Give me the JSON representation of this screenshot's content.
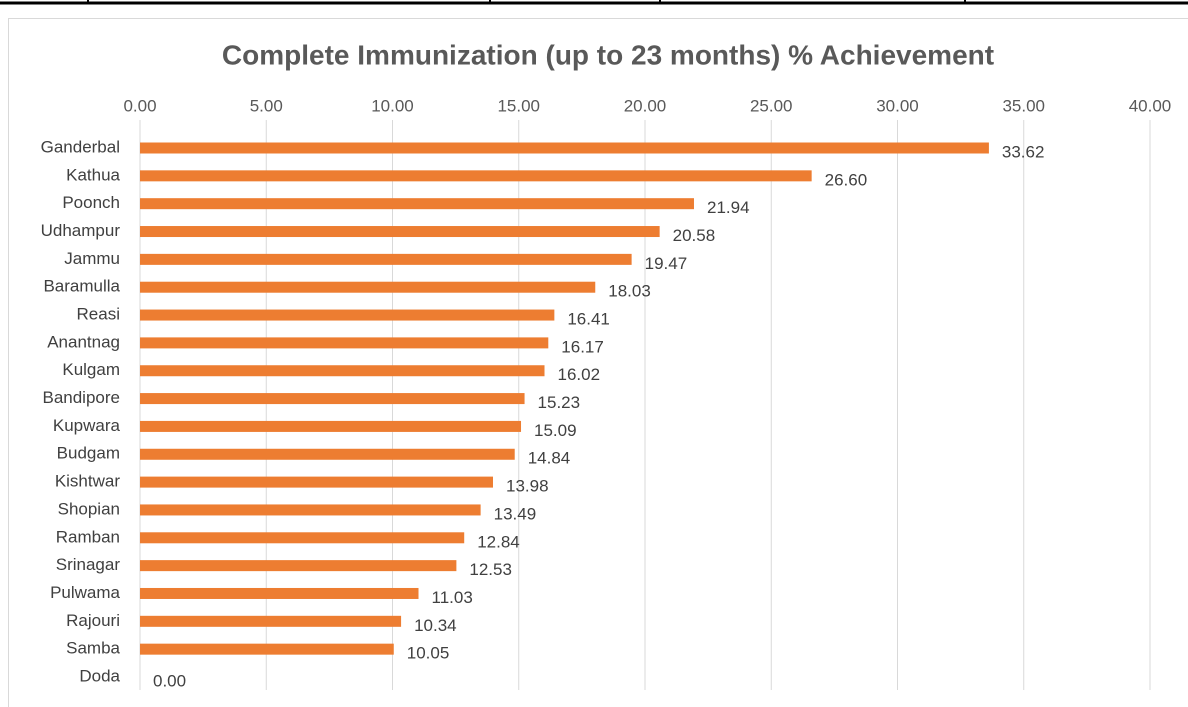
{
  "chart_data": {
    "type": "bar",
    "orientation": "horizontal",
    "title": "Complete Immunization  (up to 23 months) % Achievement",
    "categories": [
      "Ganderbal",
      "Kathua",
      "Poonch",
      "Udhampur",
      "Jammu",
      "Baramulla",
      "Reasi",
      "Anantnag",
      "Kulgam",
      "Bandipore",
      "Kupwara",
      "Budgam",
      "Kishtwar",
      "Shopian",
      "Ramban",
      "Srinagar",
      "Pulwama",
      "Rajouri",
      "Samba",
      "Doda"
    ],
    "values": [
      33.62,
      26.6,
      21.94,
      20.58,
      19.47,
      18.03,
      16.41,
      16.17,
      16.02,
      15.23,
      15.09,
      14.84,
      13.98,
      13.49,
      12.84,
      12.53,
      11.03,
      10.34,
      10.05,
      0
    ],
    "value_labels": [
      "33.62",
      "26.60",
      "21.94",
      "20.58",
      "19.47",
      "18.03",
      "16.41",
      "16.17",
      "16.02",
      "15.23",
      "15.09",
      "14.84",
      "13.98",
      "13.49",
      "12.84",
      "12.53",
      "11.03",
      "10.34",
      "10.05",
      "0.00"
    ],
    "color": "#ed7d31",
    "xlim": [
      0,
      40
    ],
    "xticks": [
      {
        "value": 0,
        "label": "0.00"
      },
      {
        "value": 5,
        "label": "5.00"
      },
      {
        "value": 10,
        "label": "10.00"
      },
      {
        "value": 15,
        "label": "15.00"
      },
      {
        "value": 20,
        "label": "20.00"
      },
      {
        "value": 25,
        "label": "25.00"
      },
      {
        "value": 30,
        "label": "30.00"
      },
      {
        "value": 35,
        "label": "35.00"
      },
      {
        "value": 40,
        "label": "40.00"
      }
    ],
    "grid": true
  }
}
